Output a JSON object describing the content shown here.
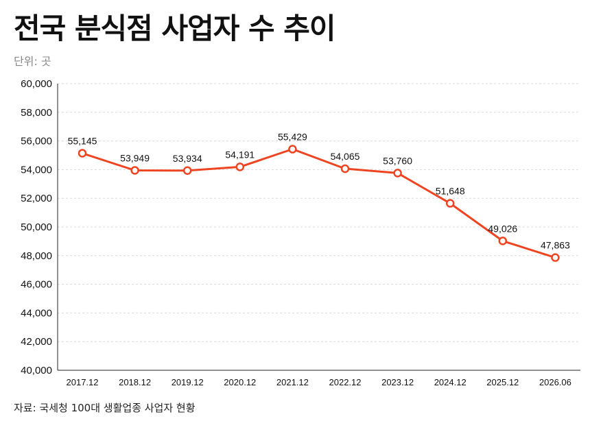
{
  "header": {
    "title": "전국 분식점 사업자 수 추이",
    "unit": "단위: 곳"
  },
  "footer": {
    "source": "자료: 국세청 100대 생활업종 사업자 현황"
  },
  "colors": {
    "line": "#ee4422",
    "marker_fill": "#ffffff",
    "grid": "#d9d9d9",
    "axis": "#222222"
  },
  "chart_data": {
    "type": "line",
    "title": "전국 분식점 사업자 수 추이",
    "xlabel": "",
    "ylabel": "단위: 곳",
    "ylim": [
      40000,
      60000
    ],
    "yticks": [
      40000,
      42000,
      44000,
      46000,
      48000,
      50000,
      52000,
      54000,
      56000,
      58000,
      60000
    ],
    "grid": true,
    "legend": "none",
    "categories": [
      "2017.12",
      "2018.12",
      "2019.12",
      "2020.12",
      "2021.12",
      "2022.12",
      "2023.12",
      "2024.12",
      "2025.12",
      "2026.06"
    ],
    "series": [
      {
        "values": [
          55145,
          53949,
          53934,
          54191,
          55429,
          54065,
          53760,
          51648,
          49026,
          47863
        ]
      }
    ]
  }
}
